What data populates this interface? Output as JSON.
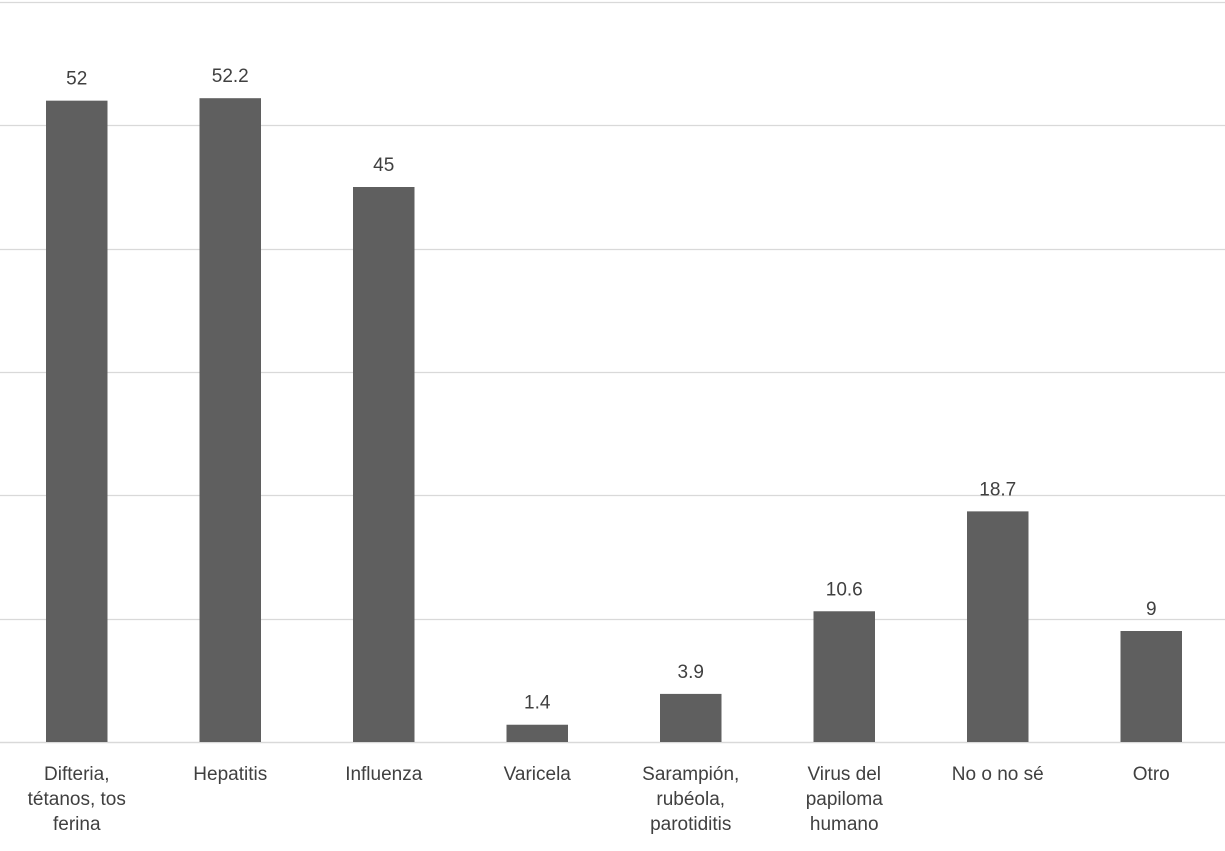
{
  "chart_data": {
    "type": "bar",
    "categories": [
      [
        "Difteria,",
        "tétanos, tos",
        "ferina"
      ],
      [
        "Hepatitis"
      ],
      [
        "Influenza"
      ],
      [
        "Varicela"
      ],
      [
        "Sarampión,",
        "rubéola,",
        "parotiditis"
      ],
      [
        "Virus del",
        "papiloma",
        "humano"
      ],
      [
        "No o no sé"
      ],
      [
        "Otro"
      ]
    ],
    "values": [
      52,
      52.2,
      45,
      1.4,
      3.9,
      10.6,
      18.7,
      9
    ],
    "data_labels": [
      "52",
      "52.2",
      "45",
      "1.4",
      "3.9",
      "10.6",
      "18.7",
      "9"
    ],
    "ylim": [
      0,
      60
    ],
    "grid": true,
    "gridline_step": 10,
    "bar_color": "#5f5f5f",
    "grid_color": "#d9d9d9",
    "text_color": "#404040"
  }
}
